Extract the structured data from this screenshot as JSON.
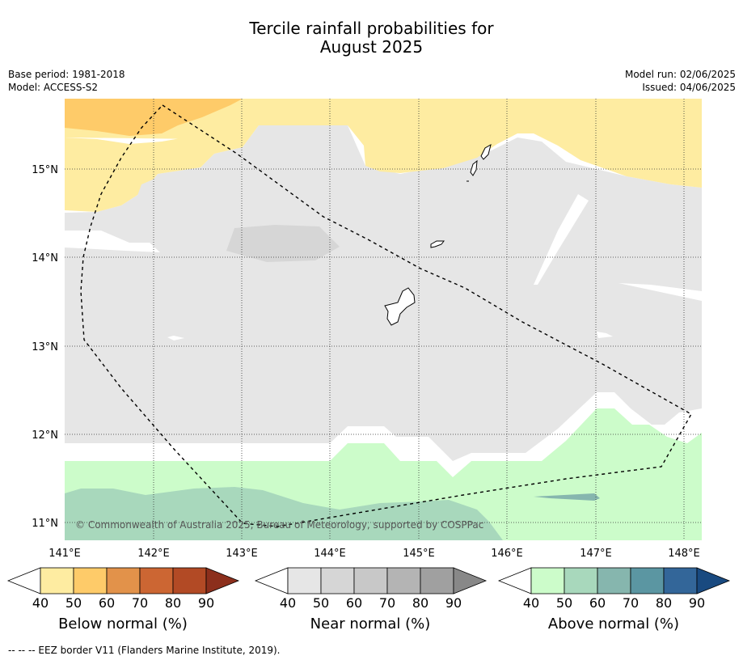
{
  "title_line1": "Tercile rainfall probabilities for",
  "title_line2": "August 2025",
  "base_period": "Base period: 1981-2018",
  "model": "Model: ACCESS-S2",
  "model_run": "Model run: 02/06/2025",
  "issued": "Issued: 04/06/2025",
  "copyright": "© Commonwealth of Australia 2025, Bureau of Meteorology, supported by COSPPac",
  "map": {
    "lon_ticks": [
      "141°E",
      "142°E",
      "143°E",
      "144°E",
      "145°E",
      "146°E",
      "147°E",
      "148°E"
    ],
    "lat_ticks": [
      "15°N",
      "14°N",
      "13°N",
      "12°N",
      "11°N"
    ]
  },
  "colorbars": [
    {
      "label": "Below normal (%)",
      "ticks": [
        "40",
        "50",
        "60",
        "70",
        "80",
        "90"
      ],
      "colors": [
        "#ffffff",
        "#feeca1",
        "#fecb69",
        "#e2924a",
        "#cc6633",
        "#b24a25",
        "#8c2f1c"
      ]
    },
    {
      "label": "Near normal (%)",
      "ticks": [
        "40",
        "50",
        "60",
        "70",
        "80",
        "90"
      ],
      "colors": [
        "#ffffff",
        "#e6e6e6",
        "#d6d6d6",
        "#c8c8c8",
        "#b4b4b4",
        "#a0a0a0",
        "#888888"
      ]
    },
    {
      "label": "Above normal (%)",
      "ticks": [
        "40",
        "50",
        "60",
        "70",
        "80",
        "90"
      ],
      "colors": [
        "#ffffff",
        "#ccfcca",
        "#a8d8bc",
        "#86b6ae",
        "#5b96a2",
        "#336699",
        "#194a80"
      ]
    }
  ],
  "footer": "--  --  -- EEZ border V11 (Flanders Marine Institute, 2019)."
}
